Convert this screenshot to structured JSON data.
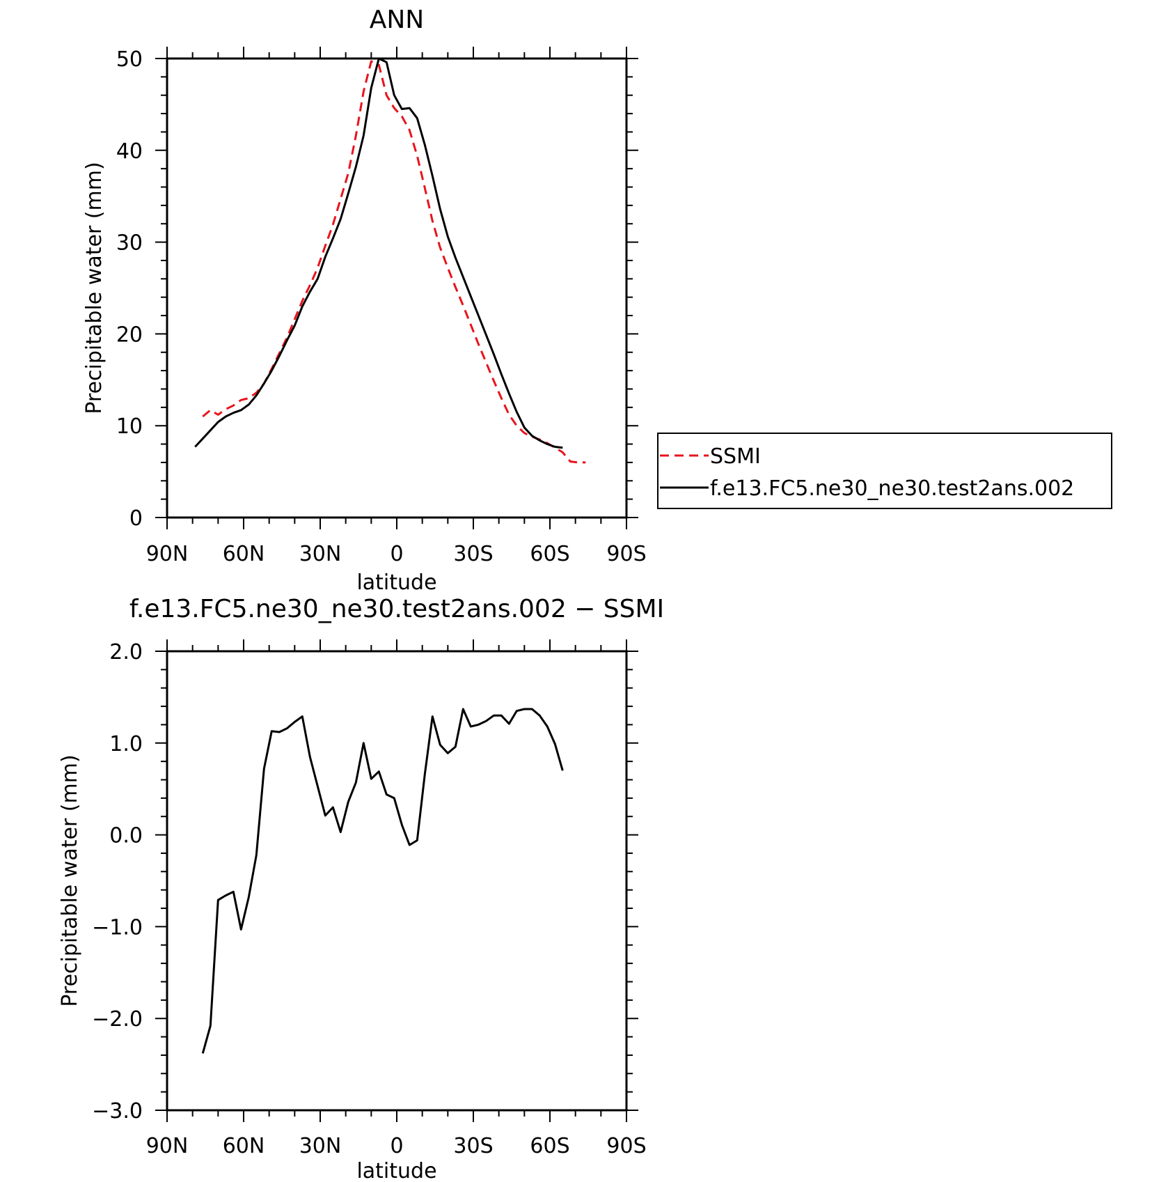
{
  "chart_data": [
    {
      "type": "line",
      "title": "ANN",
      "xlabel": "latitude",
      "ylabel": "Precipitable water (mm)",
      "xlim": [
        90,
        -90
      ],
      "ylim": [
        0,
        50
      ],
      "x_ticks": [
        90,
        60,
        30,
        0,
        -30,
        -60,
        -90
      ],
      "x_tick_labels": [
        "90N",
        "60N",
        "30N",
        "0",
        "30S",
        "60S",
        "90S"
      ],
      "y_ticks": [
        0,
        10,
        20,
        30,
        40,
        50
      ],
      "y_tick_labels": [
        "0",
        "10",
        "20",
        "30",
        "40",
        "50"
      ],
      "legend_position": "right",
      "series": [
        {
          "name": "SSMI",
          "color": "#e8141c",
          "dash": "dashed",
          "x": [
            76,
            73,
            70,
            67,
            64,
            61,
            58,
            55,
            52,
            49,
            46,
            43,
            40,
            37,
            34,
            31,
            28,
            25,
            22,
            19,
            16,
            13,
            10,
            7,
            4,
            1,
            -2,
            -5,
            -8,
            -11,
            -14,
            -17,
            -20,
            -23,
            -26,
            -29,
            -32,
            -35,
            -38,
            -41,
            -44,
            -47,
            -50,
            -53,
            -56,
            -59,
            -62,
            -65,
            -68,
            -71,
            -74
          ],
          "y": [
            11.0,
            11.7,
            11.2,
            11.8,
            12.2,
            12.8,
            13.0,
            13.6,
            14.6,
            16.2,
            17.9,
            19.6,
            21.6,
            23.6,
            25.3,
            27.2,
            29.6,
            31.9,
            34.7,
            37.5,
            41.6,
            46.4,
            49.7,
            49.3,
            46.0,
            44.6,
            43.7,
            42.2,
            39.4,
            35.9,
            32.3,
            29.4,
            27.2,
            25.1,
            23.1,
            21.0,
            18.9,
            16.9,
            14.9,
            13.0,
            11.2,
            10.0,
            9.2,
            8.8,
            8.5,
            8.1,
            7.6,
            7.1,
            6.1,
            6.0,
            6.0
          ]
        },
        {
          "name": "f.e13.FC5.ne30_ne30.test2ans.002",
          "color": "#000000",
          "dash": "solid",
          "x": [
            79,
            76,
            73,
            70,
            67,
            64,
            61,
            58,
            55,
            52,
            49,
            46,
            43,
            40,
            37,
            34,
            31,
            28,
            25,
            22,
            19,
            16,
            13,
            10,
            7,
            4,
            1,
            -2,
            -5,
            -8,
            -11,
            -14,
            -17,
            -20,
            -23,
            -26,
            -29,
            -32,
            -35,
            -38,
            -41,
            -44,
            -47,
            -50,
            -53,
            -56,
            -59,
            -62,
            -65
          ],
          "y": [
            7.7,
            8.6,
            9.5,
            10.4,
            11.0,
            11.4,
            11.7,
            12.3,
            13.3,
            14.6,
            16.0,
            17.6,
            19.3,
            20.9,
            23.0,
            24.6,
            26.0,
            28.4,
            30.4,
            32.5,
            35.3,
            38.2,
            41.6,
            46.8,
            50.0,
            49.6,
            46.0,
            44.5,
            44.6,
            43.5,
            40.6,
            37.2,
            33.6,
            30.6,
            28.3,
            26.2,
            24.1,
            22.0,
            19.9,
            17.8,
            15.6,
            13.5,
            11.5,
            9.8,
            8.9,
            8.4,
            8.0,
            7.7,
            7.6
          ]
        }
      ]
    },
    {
      "type": "line",
      "title": "f.e13.FC5.ne30_ne30.test2ans.002 − SSMI",
      "xlabel": "latitude",
      "ylabel": "Precipitable water (mm)",
      "xlim": [
        90,
        -90
      ],
      "ylim": [
        -3.0,
        2.0
      ],
      "x_ticks": [
        90,
        60,
        30,
        0,
        -30,
        -60,
        -90
      ],
      "x_tick_labels": [
        "90N",
        "60N",
        "30N",
        "0",
        "30S",
        "60S",
        "90S"
      ],
      "y_ticks": [
        -3.0,
        -2.0,
        -1.0,
        0.0,
        1.0,
        2.0
      ],
      "y_tick_labels": [
        "−3.0",
        "−2.0",
        "−1.0",
        "0.0",
        "1.0",
        "2.0"
      ],
      "series": [
        {
          "color": "#000000",
          "dash": "solid",
          "x": [
            76,
            73,
            70,
            67,
            64,
            61,
            58,
            55,
            52,
            49,
            46,
            43,
            40,
            37,
            34,
            31,
            28,
            25,
            22,
            19,
            16,
            13,
            10,
            7,
            4,
            1,
            -2,
            -5,
            -8,
            -11,
            -14,
            -17,
            -20,
            -23,
            -26,
            -29,
            -32,
            -35,
            -38,
            -41,
            -44,
            -47,
            -50,
            -53,
            -56,
            -59,
            -62,
            -65
          ],
          "y": [
            -2.38,
            -2.08,
            -0.71,
            -0.66,
            -0.62,
            -1.03,
            -0.68,
            -0.22,
            0.72,
            1.13,
            1.12,
            1.16,
            1.23,
            1.29,
            0.85,
            0.53,
            0.21,
            0.3,
            0.03,
            0.36,
            0.57,
            1.0,
            0.61,
            0.69,
            0.44,
            0.4,
            0.11,
            -0.11,
            -0.06,
            0.66,
            1.29,
            0.98,
            0.89,
            0.96,
            1.37,
            1.18,
            1.2,
            1.24,
            1.3,
            1.3,
            1.21,
            1.35,
            1.37,
            1.37,
            1.3,
            1.18,
            0.99,
            0.7
          ]
        }
      ]
    }
  ]
}
